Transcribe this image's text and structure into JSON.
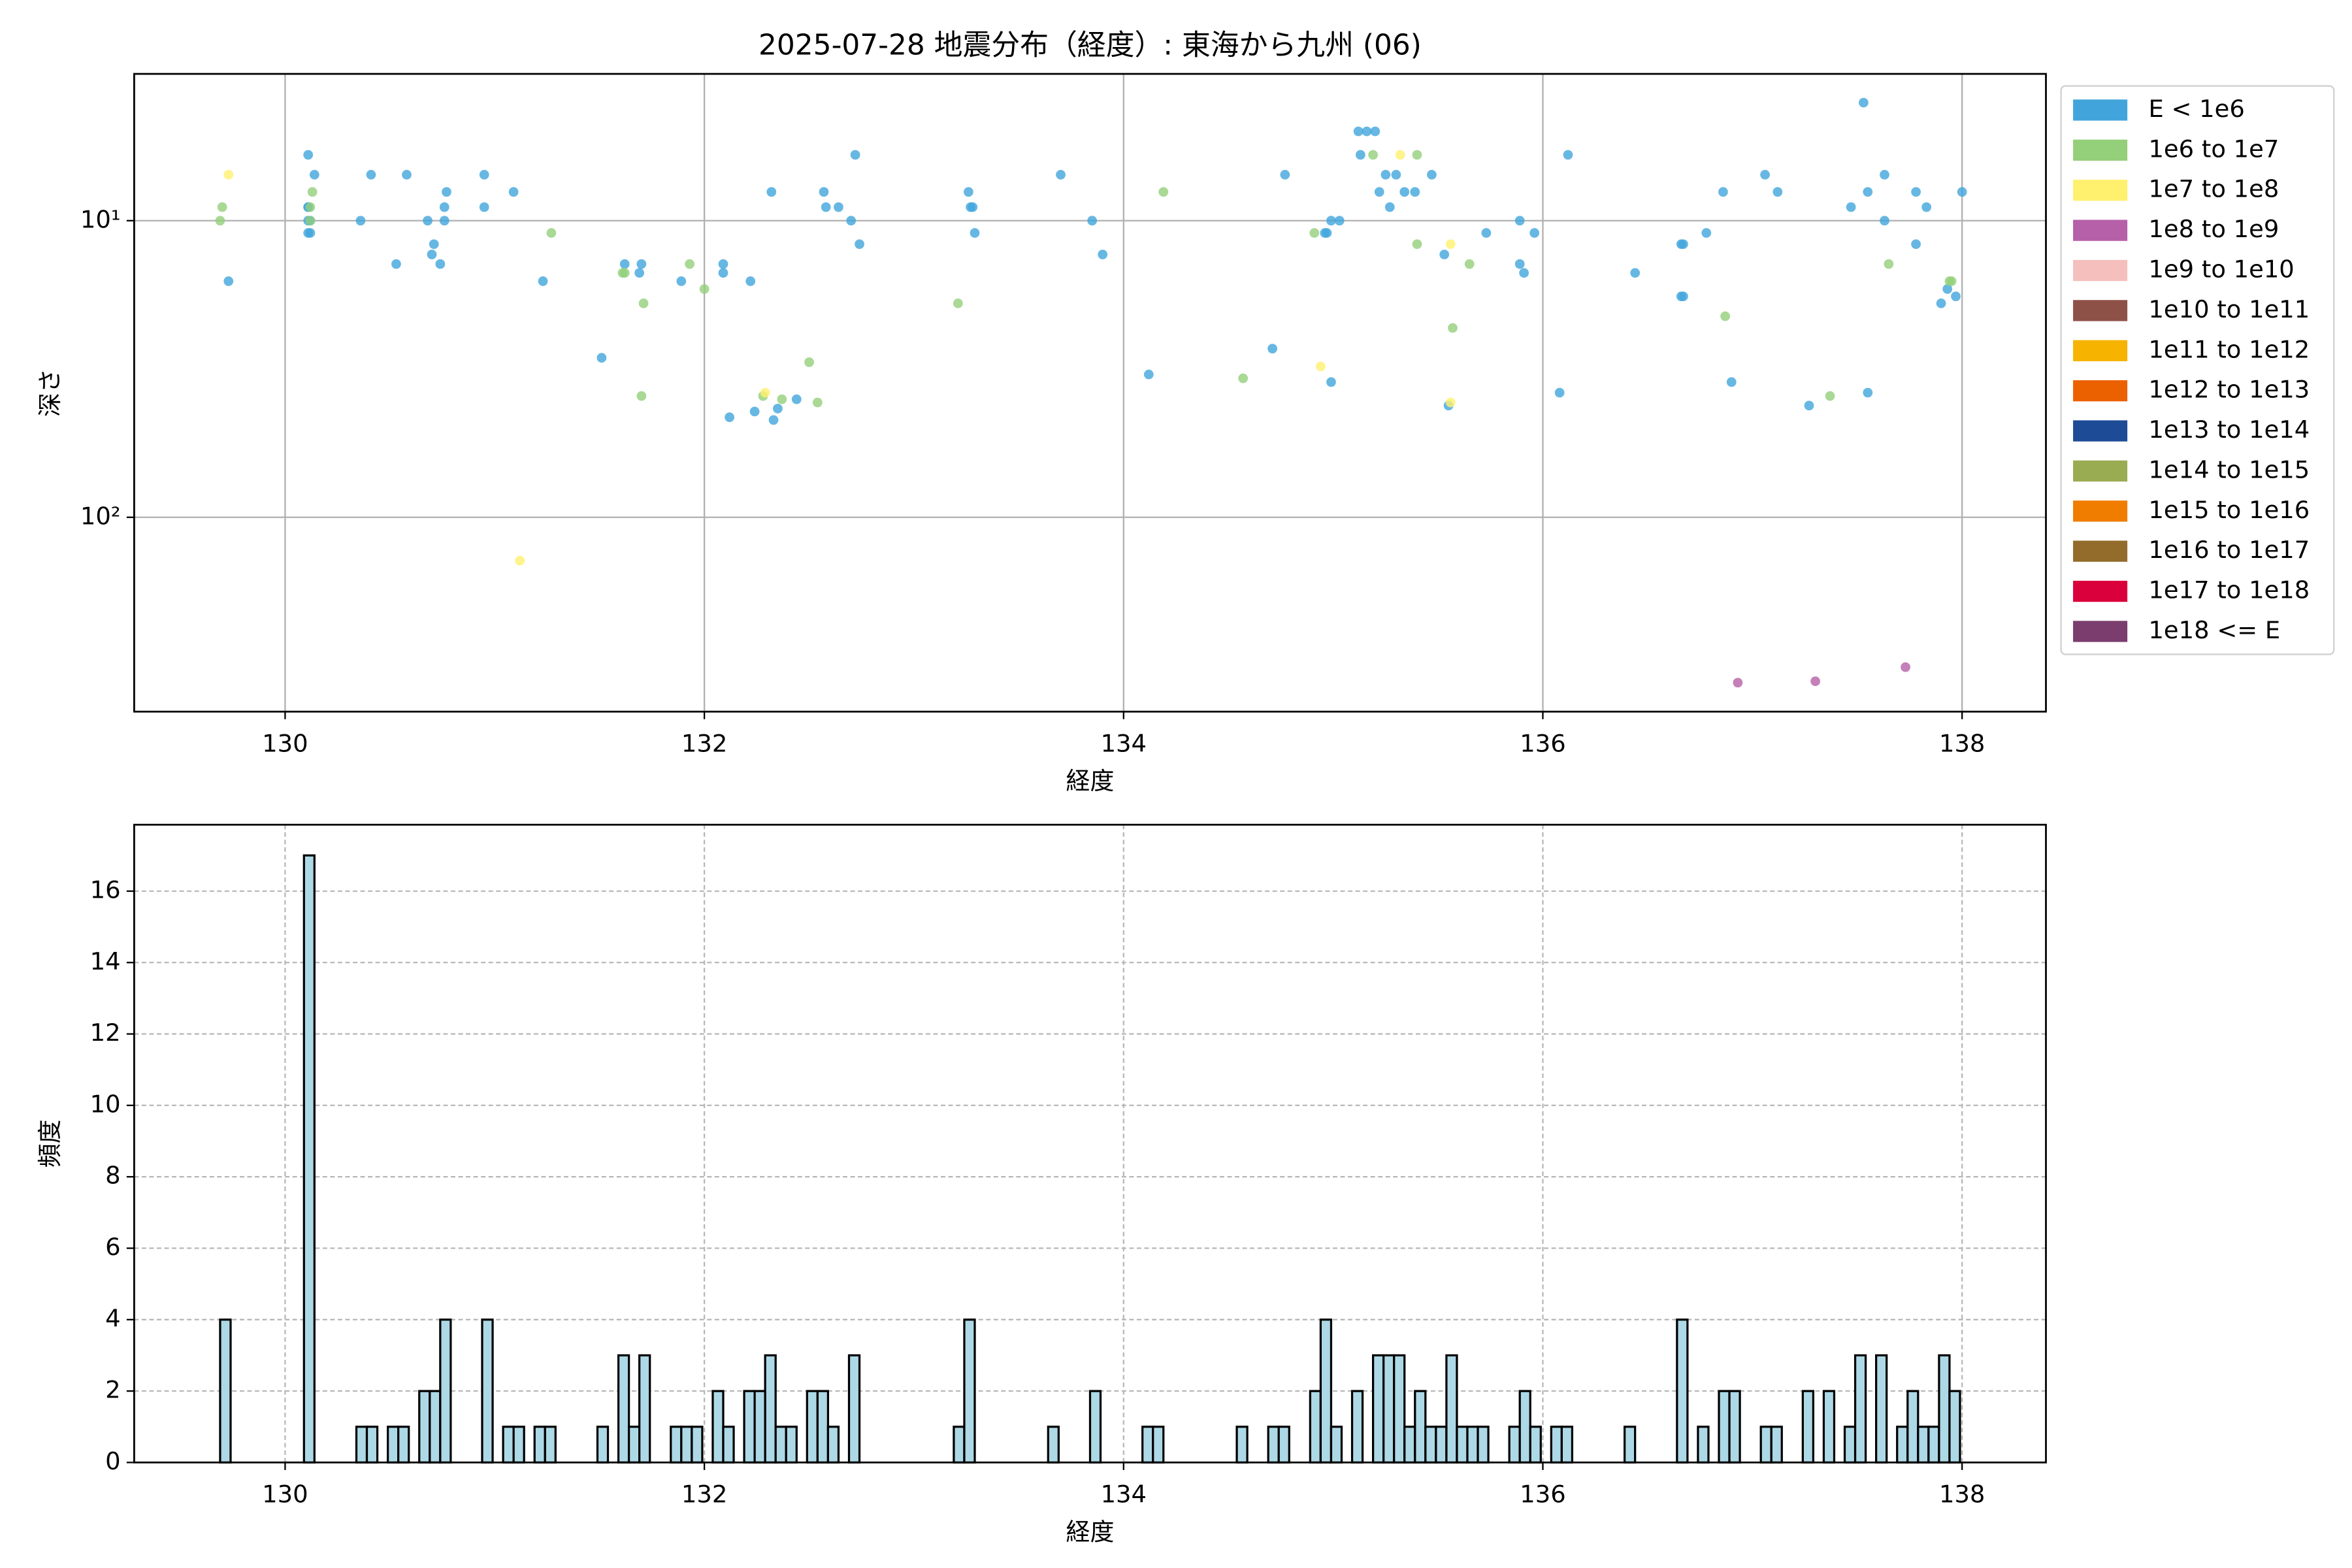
{
  "chart_data": [
    {
      "type": "scatter",
      "title": "2025-07-28 地震分布（経度）: 東海から九州 (06)",
      "xlabel": "経度",
      "ylabel": "深さ",
      "xlim": [
        129.28,
        138.4
      ],
      "xticks": [
        130,
        132,
        134,
        136,
        138
      ],
      "ylim": [
        452,
        3.2
      ],
      "yscale": "log",
      "yticks": [
        {
          "value": 10,
          "label": "10¹"
        },
        {
          "value": 100,
          "label": "10²"
        }
      ],
      "grid": true,
      "legend": "outside-right",
      "series": [
        {
          "name": "E < 1e6",
          "color": "#41a5dc",
          "x": [
            129.73,
            130.11,
            130.11,
            130.11,
            130.11,
            130.12,
            130.12,
            130.11,
            130.14,
            130.36,
            130.41,
            130.53,
            130.58,
            130.68,
            130.7,
            130.71,
            130.74,
            130.76,
            130.76,
            130.77,
            130.95,
            130.95,
            131.09,
            131.23,
            131.51,
            131.62,
            131.69,
            131.7,
            131.89,
            132.09,
            132.09,
            132.12,
            132.22,
            132.24,
            132.32,
            132.33,
            132.35,
            132.44,
            132.57,
            132.58,
            132.64,
            132.7,
            132.72,
            132.74,
            133.26,
            133.27,
            133.28,
            133.29,
            133.7,
            133.85,
            133.9,
            134.12,
            134.71,
            134.77,
            134.96,
            134.97,
            134.99,
            134.99,
            135.03,
            135.12,
            135.16,
            135.2,
            135.13,
            135.22,
            135.25,
            135.27,
            135.3,
            135.34,
            135.39,
            135.47,
            135.53,
            135.55,
            135.73,
            135.89,
            135.89,
            135.91,
            135.96,
            136.08,
            136.12,
            136.44,
            136.66,
            136.67,
            136.66,
            136.67,
            136.78,
            136.86,
            136.9,
            137.06,
            137.12,
            137.27,
            137.47,
            137.53,
            137.55,
            137.55,
            137.63,
            137.63,
            137.78,
            137.78,
            137.83,
            137.9,
            137.93,
            137.97,
            138.0
          ],
          "values": [
            16,
            6,
            9,
            9,
            10,
            10,
            11,
            11,
            7,
            10,
            7,
            14,
            7,
            10,
            13,
            12,
            14,
            10,
            9,
            8,
            7,
            9,
            8,
            16,
            29,
            14,
            15,
            14,
            16,
            15,
            14,
            46,
            16,
            44,
            8,
            47,
            43,
            40,
            8,
            9,
            9,
            10,
            6,
            12,
            8,
            9,
            9,
            11,
            7,
            10,
            13,
            33,
            27,
            7,
            11,
            11,
            10,
            35,
            10,
            5,
            5,
            5,
            6,
            8,
            7,
            9,
            7,
            8,
            8,
            7,
            13,
            42,
            11,
            10,
            14,
            15,
            11,
            38,
            6,
            15,
            12,
            12,
            18,
            18,
            11,
            8,
            35,
            7,
            8,
            42,
            9,
            4,
            8,
            38,
            7,
            10,
            8,
            12,
            9,
            19,
            17,
            18,
            8
          ]
        },
        {
          "name": "1e6 to 1e7",
          "color": "#94cf7a",
          "x": [
            129.7,
            129.69,
            130.12,
            130.13,
            130.12,
            131.27,
            131.61,
            131.62,
            131.71,
            131.7,
            131.93,
            132.0,
            132.28,
            132.37,
            132.5,
            132.54,
            133.21,
            134.19,
            134.57,
            134.91,
            135.19,
            135.4,
            135.4,
            135.57,
            135.65,
            136.87,
            137.37,
            137.65,
            137.94,
            137.95
          ],
          "values": [
            9,
            10,
            9,
            8,
            10,
            11,
            15,
            15,
            19,
            39,
            14,
            17,
            39,
            40,
            30,
            41,
            19,
            8,
            34,
            11,
            6,
            6,
            12,
            23,
            14,
            21,
            39,
            14,
            16,
            16
          ]
        },
        {
          "name": "1e7 to 1e8",
          "color": "#fff06e",
          "x": [
            129.73,
            131.12,
            132.29,
            134.94,
            135.32,
            135.56,
            135.56
          ],
          "values": [
            7,
            140,
            38,
            31,
            6,
            12,
            41
          ]
        },
        {
          "name": "1e8 to 1e9",
          "color": "#b560a8",
          "x": [
            136.93,
            137.3,
            137.73
          ],
          "values": [
            361,
            357,
            320
          ]
        },
        {
          "name": "1e9 to 1e10",
          "color": "#f4bfbd",
          "x": [],
          "values": []
        },
        {
          "name": "1e10 to 1e11",
          "color": "#8e5148",
          "x": [],
          "values": []
        },
        {
          "name": "1e11 to 1e12",
          "color": "#f6b300",
          "x": [],
          "values": []
        },
        {
          "name": "1e12 to 1e13",
          "color": "#eb6100",
          "x": [],
          "values": []
        },
        {
          "name": "1e13 to 1e14",
          "color": "#1e4b96",
          "x": [],
          "values": []
        },
        {
          "name": "1e14 to 1e15",
          "color": "#9aac52",
          "x": [],
          "values": []
        },
        {
          "name": "1e15 to 1e16",
          "color": "#f07d00",
          "x": [],
          "values": []
        },
        {
          "name": "1e16 to 1e17",
          "color": "#936b2b",
          "x": [],
          "values": []
        },
        {
          "name": "1e17 to 1e18",
          "color": "#d9003c",
          "x": [],
          "values": []
        },
        {
          "name": "1e18 <= E",
          "color": "#7a3d6e",
          "x": [],
          "values": []
        }
      ]
    },
    {
      "type": "histogram",
      "xlabel": "経度",
      "ylabel": "頻度",
      "xlim": [
        129.28,
        138.4
      ],
      "xticks": [
        130,
        132,
        134,
        136,
        138
      ],
      "ylim": [
        0,
        17.86
      ],
      "yticks": [
        0,
        2,
        4,
        6,
        8,
        10,
        12,
        14,
        16
      ],
      "grid": "dashed",
      "color": "#add8e6",
      "edgecolor": "#000000",
      "bins": [
        129.69,
        129.74,
        129.79,
        129.84,
        129.89,
        129.94,
        129.99,
        130.04,
        130.09,
        130.14,
        130.19,
        130.24,
        130.29,
        130.34,
        130.39,
        130.44,
        130.49,
        130.54,
        130.59,
        130.64,
        130.69,
        130.74,
        130.79,
        130.84,
        130.89,
        130.94,
        130.99,
        131.04,
        131.09,
        131.14,
        131.19,
        131.24,
        131.29,
        131.34,
        131.39,
        131.44,
        131.49,
        131.54,
        131.59,
        131.64,
        131.69,
        131.74,
        131.79,
        131.84,
        131.89,
        131.94,
        131.99,
        132.04,
        132.09,
        132.14,
        132.19,
        132.24,
        132.29,
        132.34,
        132.39,
        132.44,
        132.49,
        132.54,
        132.59,
        132.64,
        132.69,
        132.74,
        132.79,
        132.84,
        132.89,
        132.94,
        132.99,
        133.04,
        133.09,
        133.14,
        133.19,
        133.24,
        133.29,
        133.34,
        133.39,
        133.44,
        133.49,
        133.54,
        133.59,
        133.64,
        133.69,
        133.74,
        133.79,
        133.84,
        133.89,
        133.94,
        133.99,
        134.04,
        134.09,
        134.14,
        134.19,
        134.24,
        134.29,
        134.34,
        134.39,
        134.44,
        134.49,
        134.54,
        134.59,
        134.64,
        134.69,
        134.74,
        134.79,
        134.84,
        134.89,
        134.94,
        134.99,
        135.04,
        135.09,
        135.14,
        135.19,
        135.24,
        135.29,
        135.34,
        135.39,
        135.44,
        135.49,
        135.54,
        135.59,
        135.64,
        135.69,
        135.74,
        135.79,
        135.84,
        135.89,
        135.94,
        135.99,
        136.04,
        136.09,
        136.14,
        136.19,
        136.24,
        136.29,
        136.34,
        136.39,
        136.44,
        136.49,
        136.54,
        136.59,
        136.64,
        136.69,
        136.74,
        136.79,
        136.84,
        136.89,
        136.94,
        136.99,
        137.04,
        137.09,
        137.14,
        137.19,
        137.24,
        137.29,
        137.34,
        137.39,
        137.44,
        137.49,
        137.54,
        137.59,
        137.64,
        137.69,
        137.74,
        137.79,
        137.84,
        137.89,
        137.94,
        137.99
      ],
      "values": [
        4,
        0,
        0,
        0,
        0,
        0,
        0,
        0,
        17,
        0,
        0,
        0,
        0,
        1,
        1,
        0,
        1,
        1,
        0,
        2,
        2,
        4,
        0,
        0,
        0,
        4,
        0,
        1,
        1,
        0,
        1,
        1,
        0,
        0,
        0,
        0,
        1,
        0,
        3,
        1,
        3,
        0,
        0,
        1,
        1,
        1,
        0,
        2,
        1,
        0,
        2,
        2,
        3,
        1,
        1,
        0,
        2,
        2,
        1,
        0,
        3,
        0,
        0,
        0,
        0,
        0,
        0,
        0,
        0,
        0,
        1,
        4,
        0,
        0,
        0,
        0,
        0,
        0,
        0,
        1,
        0,
        0,
        0,
        2,
        0,
        0,
        0,
        0,
        1,
        1,
        0,
        0,
        0,
        0,
        0,
        0,
        0,
        1,
        0,
        0,
        1,
        1,
        0,
        0,
        2,
        4,
        1,
        0,
        2,
        0,
        3,
        3,
        3,
        1,
        2,
        1,
        1,
        3,
        1,
        1,
        1,
        0,
        0,
        1,
        2,
        1,
        0,
        1,
        1,
        0,
        0,
        0,
        0,
        0,
        1,
        0,
        0,
        0,
        0,
        4,
        0,
        1,
        0,
        2,
        2,
        0,
        0,
        1,
        1,
        0,
        0,
        2,
        0,
        2,
        0,
        1,
        3,
        0,
        3,
        0,
        1,
        2,
        1,
        1,
        3,
        2
      ]
    }
  ]
}
